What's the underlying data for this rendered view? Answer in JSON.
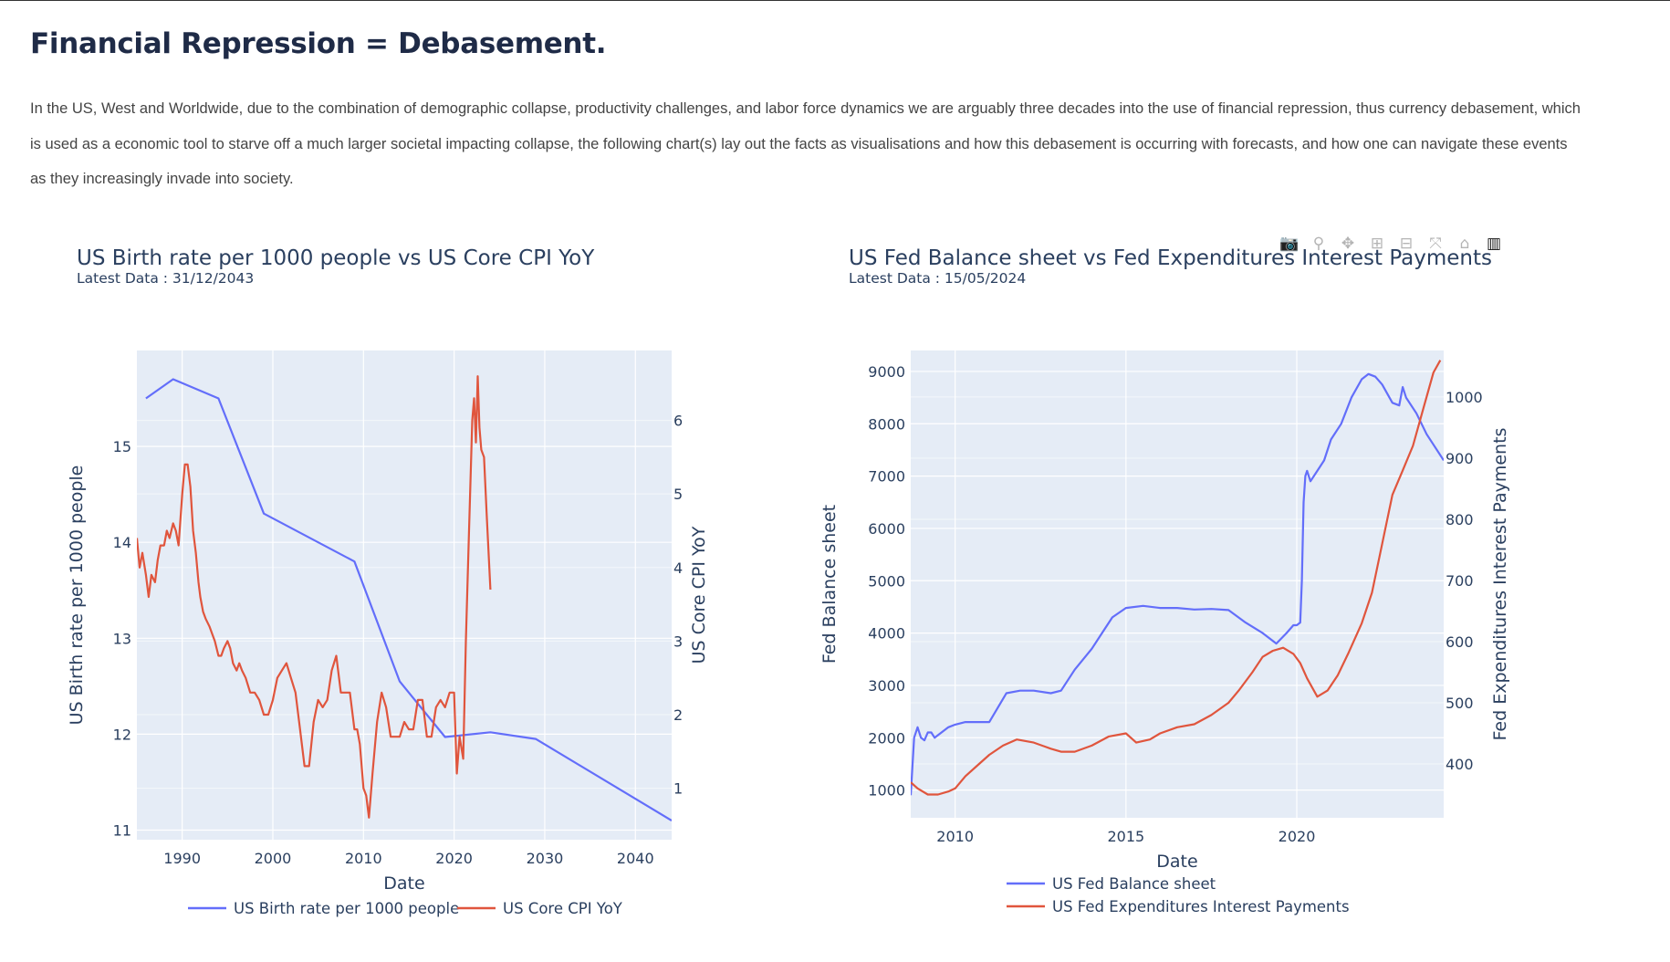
{
  "page": {
    "title": "Financial Repression = Debasement.",
    "intro": "In the US, West and Worldwide, due to the combination of demographic collapse, productivity challenges, and labor force dynamics we are arguably three decades into the use of financial repression, thus currency debasement, which is used as a economic tool to starve off a much larger societal impacting collapse, the following chart(s) lay out the facts as visualisations and how this debasement is occurring with forecasts, and how one can navigate these events as they increasingly invade into society."
  },
  "modebar": [
    {
      "name": "camera-icon",
      "glyph": "📷"
    },
    {
      "name": "zoom-icon",
      "glyph": "⚲"
    },
    {
      "name": "pan-icon",
      "glyph": "✥"
    },
    {
      "name": "zoom-in-icon",
      "glyph": "⊞"
    },
    {
      "name": "zoom-out-icon",
      "glyph": "⊟"
    },
    {
      "name": "autoscale-icon",
      "glyph": "⤧"
    },
    {
      "name": "home-icon",
      "glyph": "⌂"
    },
    {
      "name": "plotly-logo-icon",
      "glyph": "▥"
    }
  ],
  "colors": {
    "series1": "#636efa",
    "series2": "#e0553d",
    "plot_bg": "#e5ecf6"
  },
  "chart_data": [
    {
      "type": "line",
      "title": "US Birth rate per 1000 people vs US Core CPI YoY",
      "subtitle": "Latest Data : 31/12/2043",
      "xlabel": "Date",
      "ylabel": "US Birth rate per 1000 people",
      "y2label": "US Core CPI YoY",
      "xlim": [
        1985,
        2044
      ],
      "ylim": [
        10.9,
        16.0
      ],
      "y2lim": [
        0.3,
        6.95
      ],
      "xticks": [
        1990,
        2000,
        2010,
        2020,
        2030,
        2040
      ],
      "yticks": [
        11,
        12,
        13,
        14,
        15
      ],
      "y2ticks": [
        1,
        2,
        3,
        4,
        5,
        6
      ],
      "grid": true,
      "legend": "bottom",
      "series": [
        {
          "name": "US Birth rate per 1000 people",
          "axis": "y",
          "color": "#636efa",
          "x": [
            1986,
            1989,
            1994,
            1999,
            2009,
            2014,
            2019,
            2024,
            2029,
            2044
          ],
          "y": [
            15.5,
            15.7,
            15.5,
            14.3,
            13.8,
            12.55,
            11.97,
            12.02,
            11.95,
            11.1
          ]
        },
        {
          "name": "US Core CPI YoY",
          "axis": "y2",
          "color": "#e0553d",
          "x": [
            1985.0,
            1985.3,
            1985.6,
            1986.0,
            1986.3,
            1986.6,
            1987.0,
            1987.3,
            1987.6,
            1988.0,
            1988.3,
            1988.6,
            1989.0,
            1989.3,
            1989.6,
            1990.0,
            1990.3,
            1990.6,
            1990.9,
            1991.2,
            1991.5,
            1991.8,
            1992.0,
            1992.3,
            1992.6,
            1993.0,
            1993.3,
            1993.6,
            1994.0,
            1994.3,
            1994.6,
            1995.0,
            1995.3,
            1995.6,
            1996.0,
            1996.3,
            1996.6,
            1997.0,
            1997.5,
            1998.0,
            1998.5,
            1999.0,
            1999.5,
            2000.0,
            2000.5,
            2001.0,
            2001.5,
            2002.0,
            2002.5,
            2003.0,
            2003.5,
            2004.0,
            2004.5,
            2005.0,
            2005.5,
            2006.0,
            2006.5,
            2007.0,
            2007.5,
            2008.0,
            2008.5,
            2009.0,
            2009.3,
            2009.6,
            2010.0,
            2010.3,
            2010.6,
            2011.0,
            2011.5,
            2012.0,
            2012.5,
            2013.0,
            2013.5,
            2014.0,
            2014.5,
            2015.0,
            2015.5,
            2016.0,
            2016.5,
            2017.0,
            2017.5,
            2018.0,
            2018.5,
            2019.0,
            2019.5,
            2020.0,
            2020.3,
            2020.6,
            2021.0,
            2021.3,
            2021.6,
            2022.0,
            2022.2,
            2022.4,
            2022.6,
            2022.8,
            2023.0,
            2023.3,
            2023.6,
            2024.0
          ],
          "y": [
            4.4,
            4.0,
            4.2,
            3.9,
            3.6,
            3.9,
            3.8,
            4.1,
            4.3,
            4.3,
            4.5,
            4.4,
            4.6,
            4.5,
            4.3,
            5.0,
            5.4,
            5.4,
            5.1,
            4.5,
            4.2,
            3.8,
            3.6,
            3.4,
            3.3,
            3.2,
            3.1,
            3.0,
            2.8,
            2.8,
            2.9,
            3.0,
            2.9,
            2.7,
            2.6,
            2.7,
            2.6,
            2.5,
            2.3,
            2.3,
            2.2,
            2.0,
            2.0,
            2.2,
            2.5,
            2.6,
            2.7,
            2.5,
            2.3,
            1.8,
            1.3,
            1.3,
            1.9,
            2.2,
            2.1,
            2.2,
            2.6,
            2.8,
            2.3,
            2.3,
            2.3,
            1.8,
            1.8,
            1.6,
            1.0,
            0.9,
            0.6,
            1.2,
            1.9,
            2.3,
            2.1,
            1.7,
            1.7,
            1.7,
            1.9,
            1.8,
            1.8,
            2.2,
            2.2,
            1.7,
            1.7,
            2.1,
            2.2,
            2.1,
            2.3,
            2.3,
            1.2,
            1.7,
            1.4,
            3.0,
            4.3,
            6.0,
            6.3,
            5.7,
            6.6,
            5.9,
            5.6,
            5.5,
            4.7,
            3.7
          ]
        }
      ]
    },
    {
      "type": "line",
      "title": "US Fed Balance sheet vs Fed Expenditures Interest Payments",
      "subtitle": "Latest Data : 15/05/2024",
      "xlabel": "Date",
      "ylabel": "Fed Balance sheet",
      "y2label": "Fed Expenditures Interest Payments",
      "xlim": [
        2008.7,
        2024.3
      ],
      "ylim": [
        470,
        9400
      ],
      "y2lim": [
        312,
        1076
      ],
      "xticks": [
        2010,
        2015,
        2020
      ],
      "yticks": [
        1000,
        2000,
        3000,
        4000,
        5000,
        6000,
        7000,
        8000,
        9000
      ],
      "y2ticks": [
        400,
        500,
        600,
        700,
        800,
        900,
        1000
      ],
      "grid": true,
      "legend": "bottom",
      "series": [
        {
          "name": "US Fed Balance sheet",
          "axis": "y",
          "color": "#636efa",
          "x": [
            2008.7,
            2008.8,
            2008.9,
            2009.0,
            2009.1,
            2009.2,
            2009.3,
            2009.4,
            2009.6,
            2009.8,
            2010.0,
            2010.3,
            2010.6,
            2011.0,
            2011.5,
            2011.9,
            2012.3,
            2012.8,
            2013.1,
            2013.5,
            2014.0,
            2014.3,
            2014.6,
            2015.0,
            2015.5,
            2016.0,
            2016.5,
            2017.0,
            2017.5,
            2018.0,
            2018.5,
            2019.0,
            2019.4,
            2019.7,
            2019.9,
            2020.0,
            2020.1,
            2020.15,
            2020.2,
            2020.25,
            2020.3,
            2020.4,
            2020.6,
            2020.8,
            2021.0,
            2021.3,
            2021.6,
            2021.9,
            2022.1,
            2022.3,
            2022.5,
            2022.8,
            2023.0,
            2023.1,
            2023.2,
            2023.5,
            2023.8,
            2024.0,
            2024.3
          ],
          "y": [
            900,
            2000,
            2200,
            2000,
            1950,
            2100,
            2100,
            2000,
            2100,
            2200,
            2250,
            2300,
            2300,
            2300,
            2850,
            2900,
            2900,
            2850,
            2900,
            3300,
            3700,
            4000,
            4300,
            4480,
            4520,
            4480,
            4480,
            4450,
            4460,
            4440,
            4200,
            4000,
            3800,
            4000,
            4150,
            4150,
            4200,
            5000,
            6500,
            7000,
            7100,
            6900,
            7100,
            7300,
            7700,
            8000,
            8500,
            8850,
            8950,
            8900,
            8750,
            8400,
            8350,
            8700,
            8500,
            8200,
            7800,
            7600,
            7300
          ]
        },
        {
          "name": "US Fed Expenditures Interest Payments",
          "axis": "y2",
          "color": "#e0553d",
          "x": [
            2008.7,
            2008.9,
            2009.2,
            2009.5,
            2009.8,
            2010.0,
            2010.3,
            2010.7,
            2011.0,
            2011.4,
            2011.8,
            2012.3,
            2012.8,
            2013.1,
            2013.5,
            2014.0,
            2014.5,
            2015.0,
            2015.3,
            2015.7,
            2016.0,
            2016.5,
            2017.0,
            2017.5,
            2018.0,
            2018.3,
            2018.7,
            2019.0,
            2019.3,
            2019.6,
            2019.9,
            2020.1,
            2020.3,
            2020.6,
            2020.9,
            2021.2,
            2021.5,
            2021.9,
            2022.2,
            2022.5,
            2022.8,
            2023.1,
            2023.4,
            2023.7,
            2024.0,
            2024.2
          ],
          "y": [
            370,
            360,
            350,
            350,
            355,
            360,
            380,
            400,
            415,
            430,
            440,
            435,
            425,
            420,
            420,
            430,
            445,
            450,
            435,
            440,
            450,
            460,
            465,
            480,
            500,
            520,
            550,
            575,
            585,
            590,
            580,
            565,
            540,
            510,
            520,
            545,
            580,
            630,
            680,
            760,
            840,
            880,
            920,
            980,
            1040,
            1060
          ]
        }
      ]
    }
  ]
}
